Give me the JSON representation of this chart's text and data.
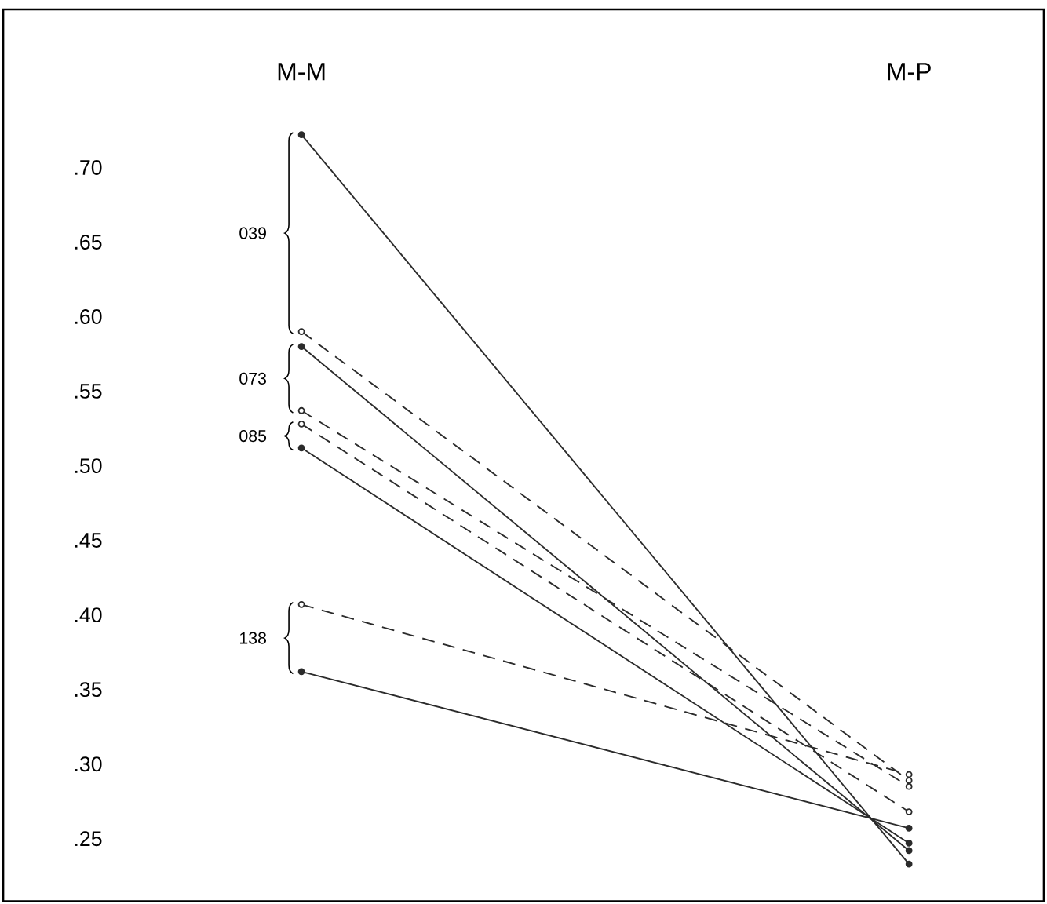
{
  "chart_data": {
    "type": "line",
    "categories": [
      "M-M",
      "M-P"
    ],
    "ylim": [
      0.208,
      0.806
    ],
    "yticks": [
      {
        "value": 0.25,
        "label": ".25"
      },
      {
        "value": 0.3,
        "label": ".30"
      },
      {
        "value": 0.35,
        "label": ".35"
      },
      {
        "value": 0.4,
        "label": ".40"
      },
      {
        "value": 0.45,
        "label": ".45"
      },
      {
        "value": 0.5,
        "label": ".50"
      },
      {
        "value": 0.55,
        "label": ".55"
      },
      {
        "value": 0.6,
        "label": ".60"
      },
      {
        "value": 0.65,
        "label": ".65"
      },
      {
        "value": 0.7,
        "label": ".70"
      }
    ],
    "marker": "circle",
    "series": [
      {
        "color": "#2b2b2b",
        "line_style": "solid",
        "values": [
          0.722,
          0.233
        ]
      },
      {
        "color": "#2b2b2b",
        "line_style": "dashed",
        "values": [
          0.59,
          0.289
        ]
      },
      {
        "color": "#2b2b2b",
        "line_style": "solid",
        "values": [
          0.58,
          0.242
        ]
      },
      {
        "color": "#2b2b2b",
        "line_style": "dashed",
        "values": [
          0.537,
          0.285
        ]
      },
      {
        "color": "#2b2b2b",
        "line_style": "dashed",
        "values": [
          0.528,
          0.268
        ]
      },
      {
        "color": "#2b2b2b",
        "line_style": "solid",
        "values": [
          0.512,
          0.247
        ]
      },
      {
        "color": "#2b2b2b",
        "line_style": "dashed",
        "values": [
          0.407,
          0.293
        ]
      },
      {
        "color": "#2b2b2b",
        "line_style": "solid",
        "values": [
          0.362,
          0.257
        ]
      }
    ],
    "annotations": [
      "039",
      "073",
      "085",
      "138"
    ]
  }
}
